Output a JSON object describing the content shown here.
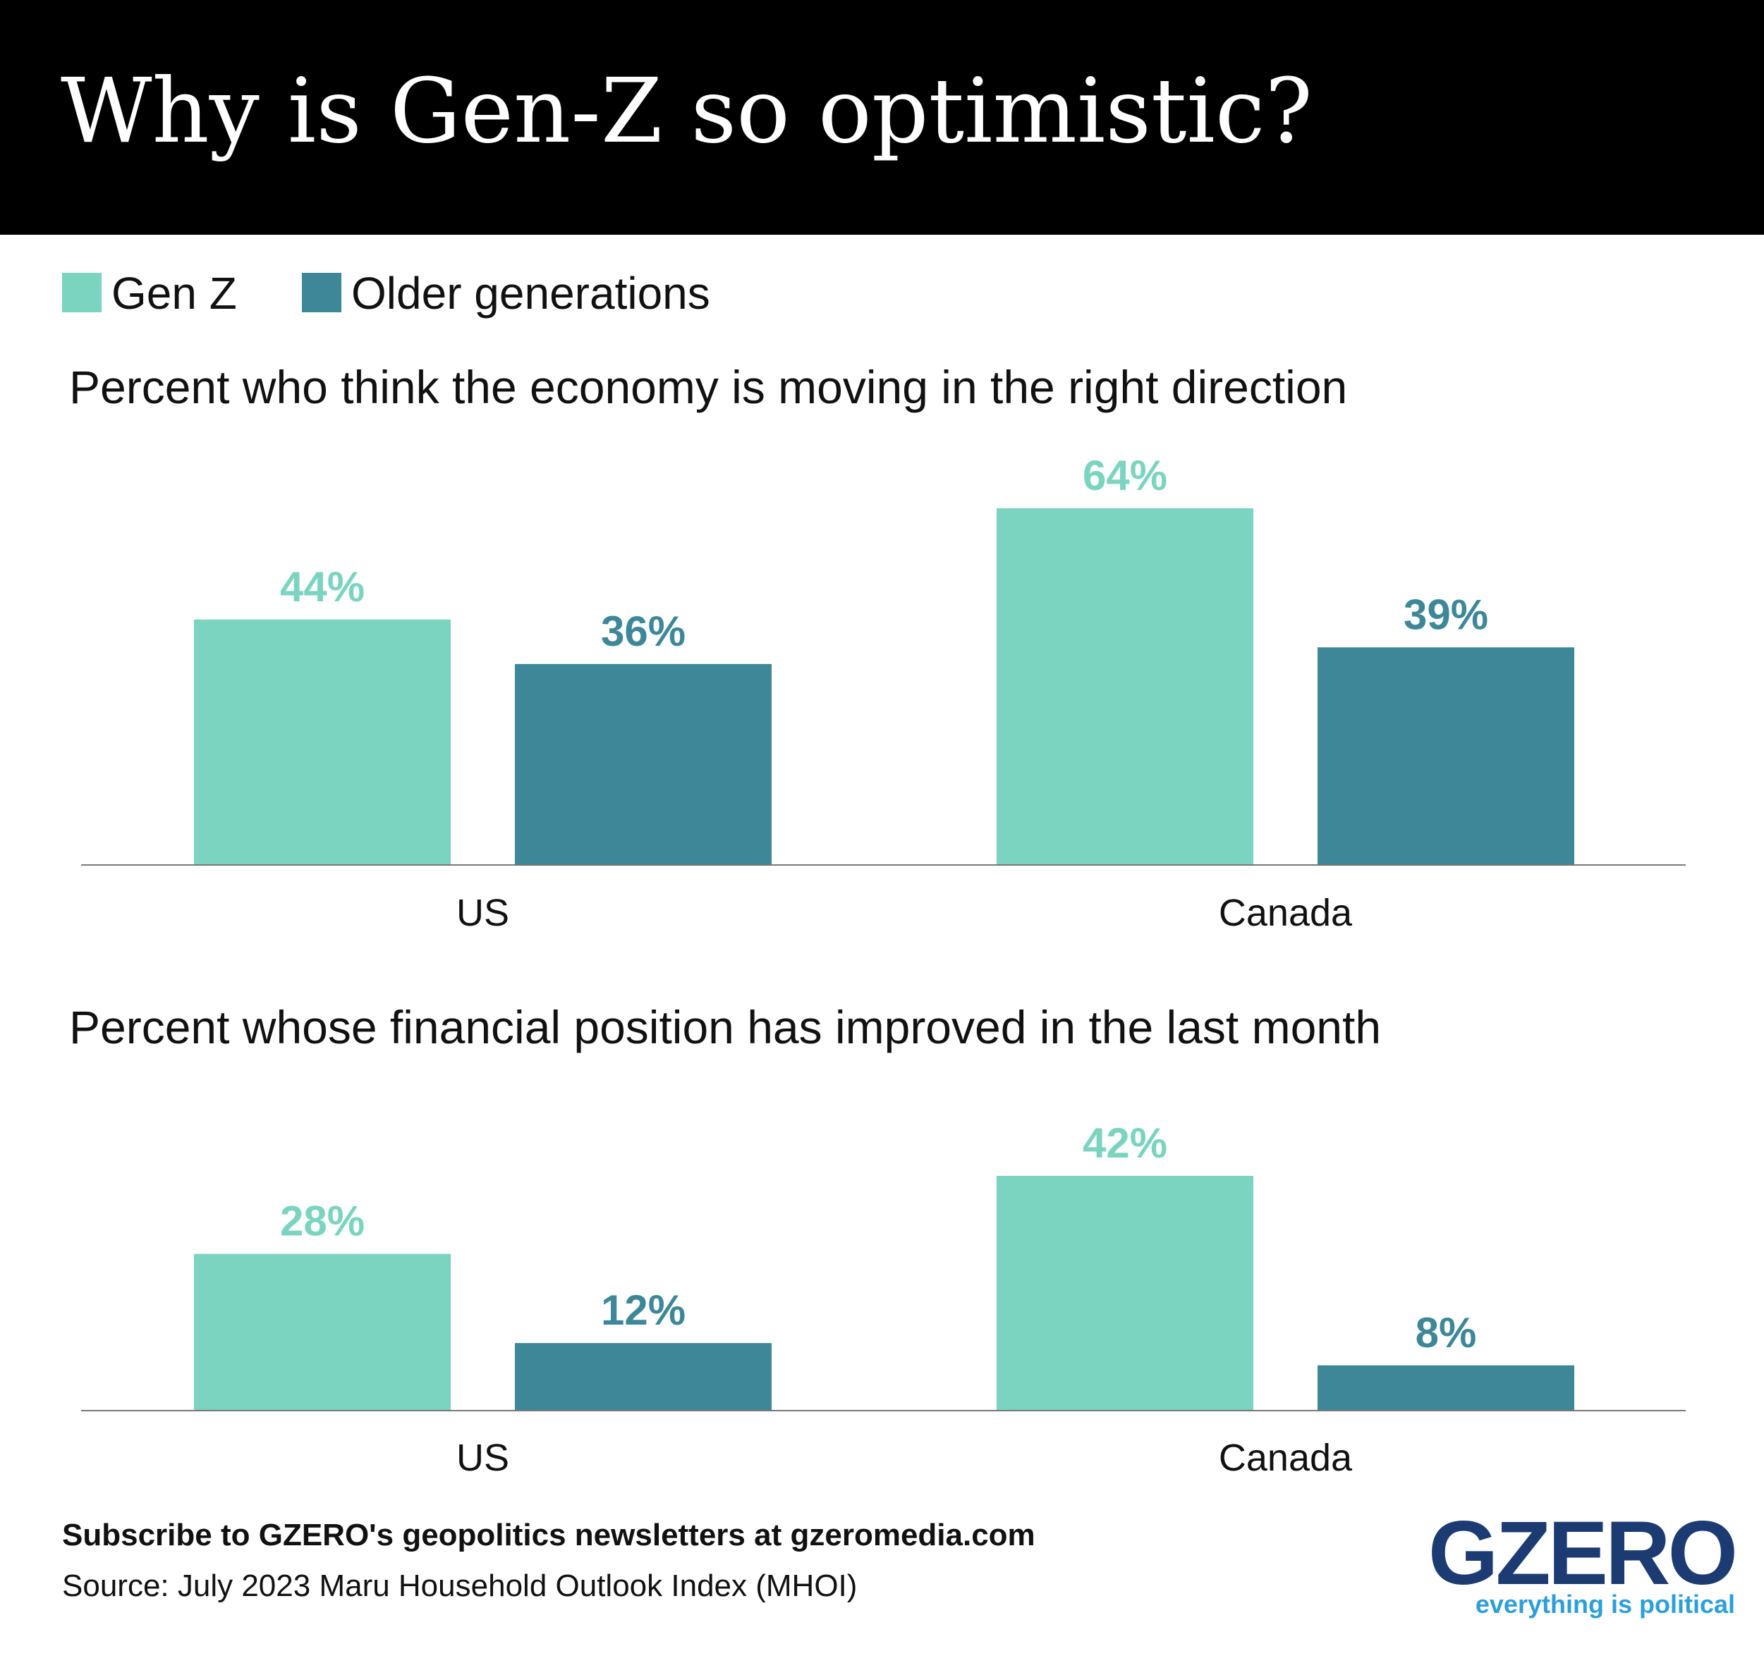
{
  "header": {
    "title": "Why is Gen-Z so optimistic?"
  },
  "legend": [
    {
      "label": "Gen Z",
      "color": "#7bd4bf"
    },
    {
      "label": "Older generations",
      "color": "#3d8798"
    }
  ],
  "chart_data": [
    {
      "type": "bar",
      "title": "Percent who think the economy is moving in the right direction",
      "categories": [
        "US",
        "Canada"
      ],
      "series": [
        {
          "name": "Gen Z",
          "values": [
            44,
            64
          ],
          "labels": [
            "44%",
            "64%"
          ],
          "color": "#7bd4bf"
        },
        {
          "name": "Older generations",
          "values": [
            36,
            39
          ],
          "labels": [
            "36%",
            "39%"
          ],
          "color": "#3d8798"
        }
      ],
      "ylim": [
        0,
        64
      ],
      "xlabel": "",
      "ylabel": "",
      "grid": false,
      "legend_position": "top-left"
    },
    {
      "type": "bar",
      "title": "Percent whose financial position has improved in the last month",
      "categories": [
        "US",
        "Canada"
      ],
      "series": [
        {
          "name": "Gen Z",
          "values": [
            28,
            42
          ],
          "labels": [
            "28%",
            "42%"
          ],
          "color": "#7bd4bf"
        },
        {
          "name": "Older generations",
          "values": [
            12,
            8
          ],
          "labels": [
            "12%",
            "8%"
          ],
          "color": "#3d8798"
        }
      ],
      "ylim": [
        0,
        42
      ],
      "xlabel": "",
      "ylabel": "",
      "grid": false,
      "legend_position": "top-left"
    }
  ],
  "footer": {
    "subscribe": "Subscribe to GZERO's geopolitics newsletters at gzeromedia.com",
    "source": "Source: July 2023 Maru Household Outlook Index (MHOI)"
  },
  "logo": {
    "name": "GZERO",
    "tagline": "everything is political"
  }
}
